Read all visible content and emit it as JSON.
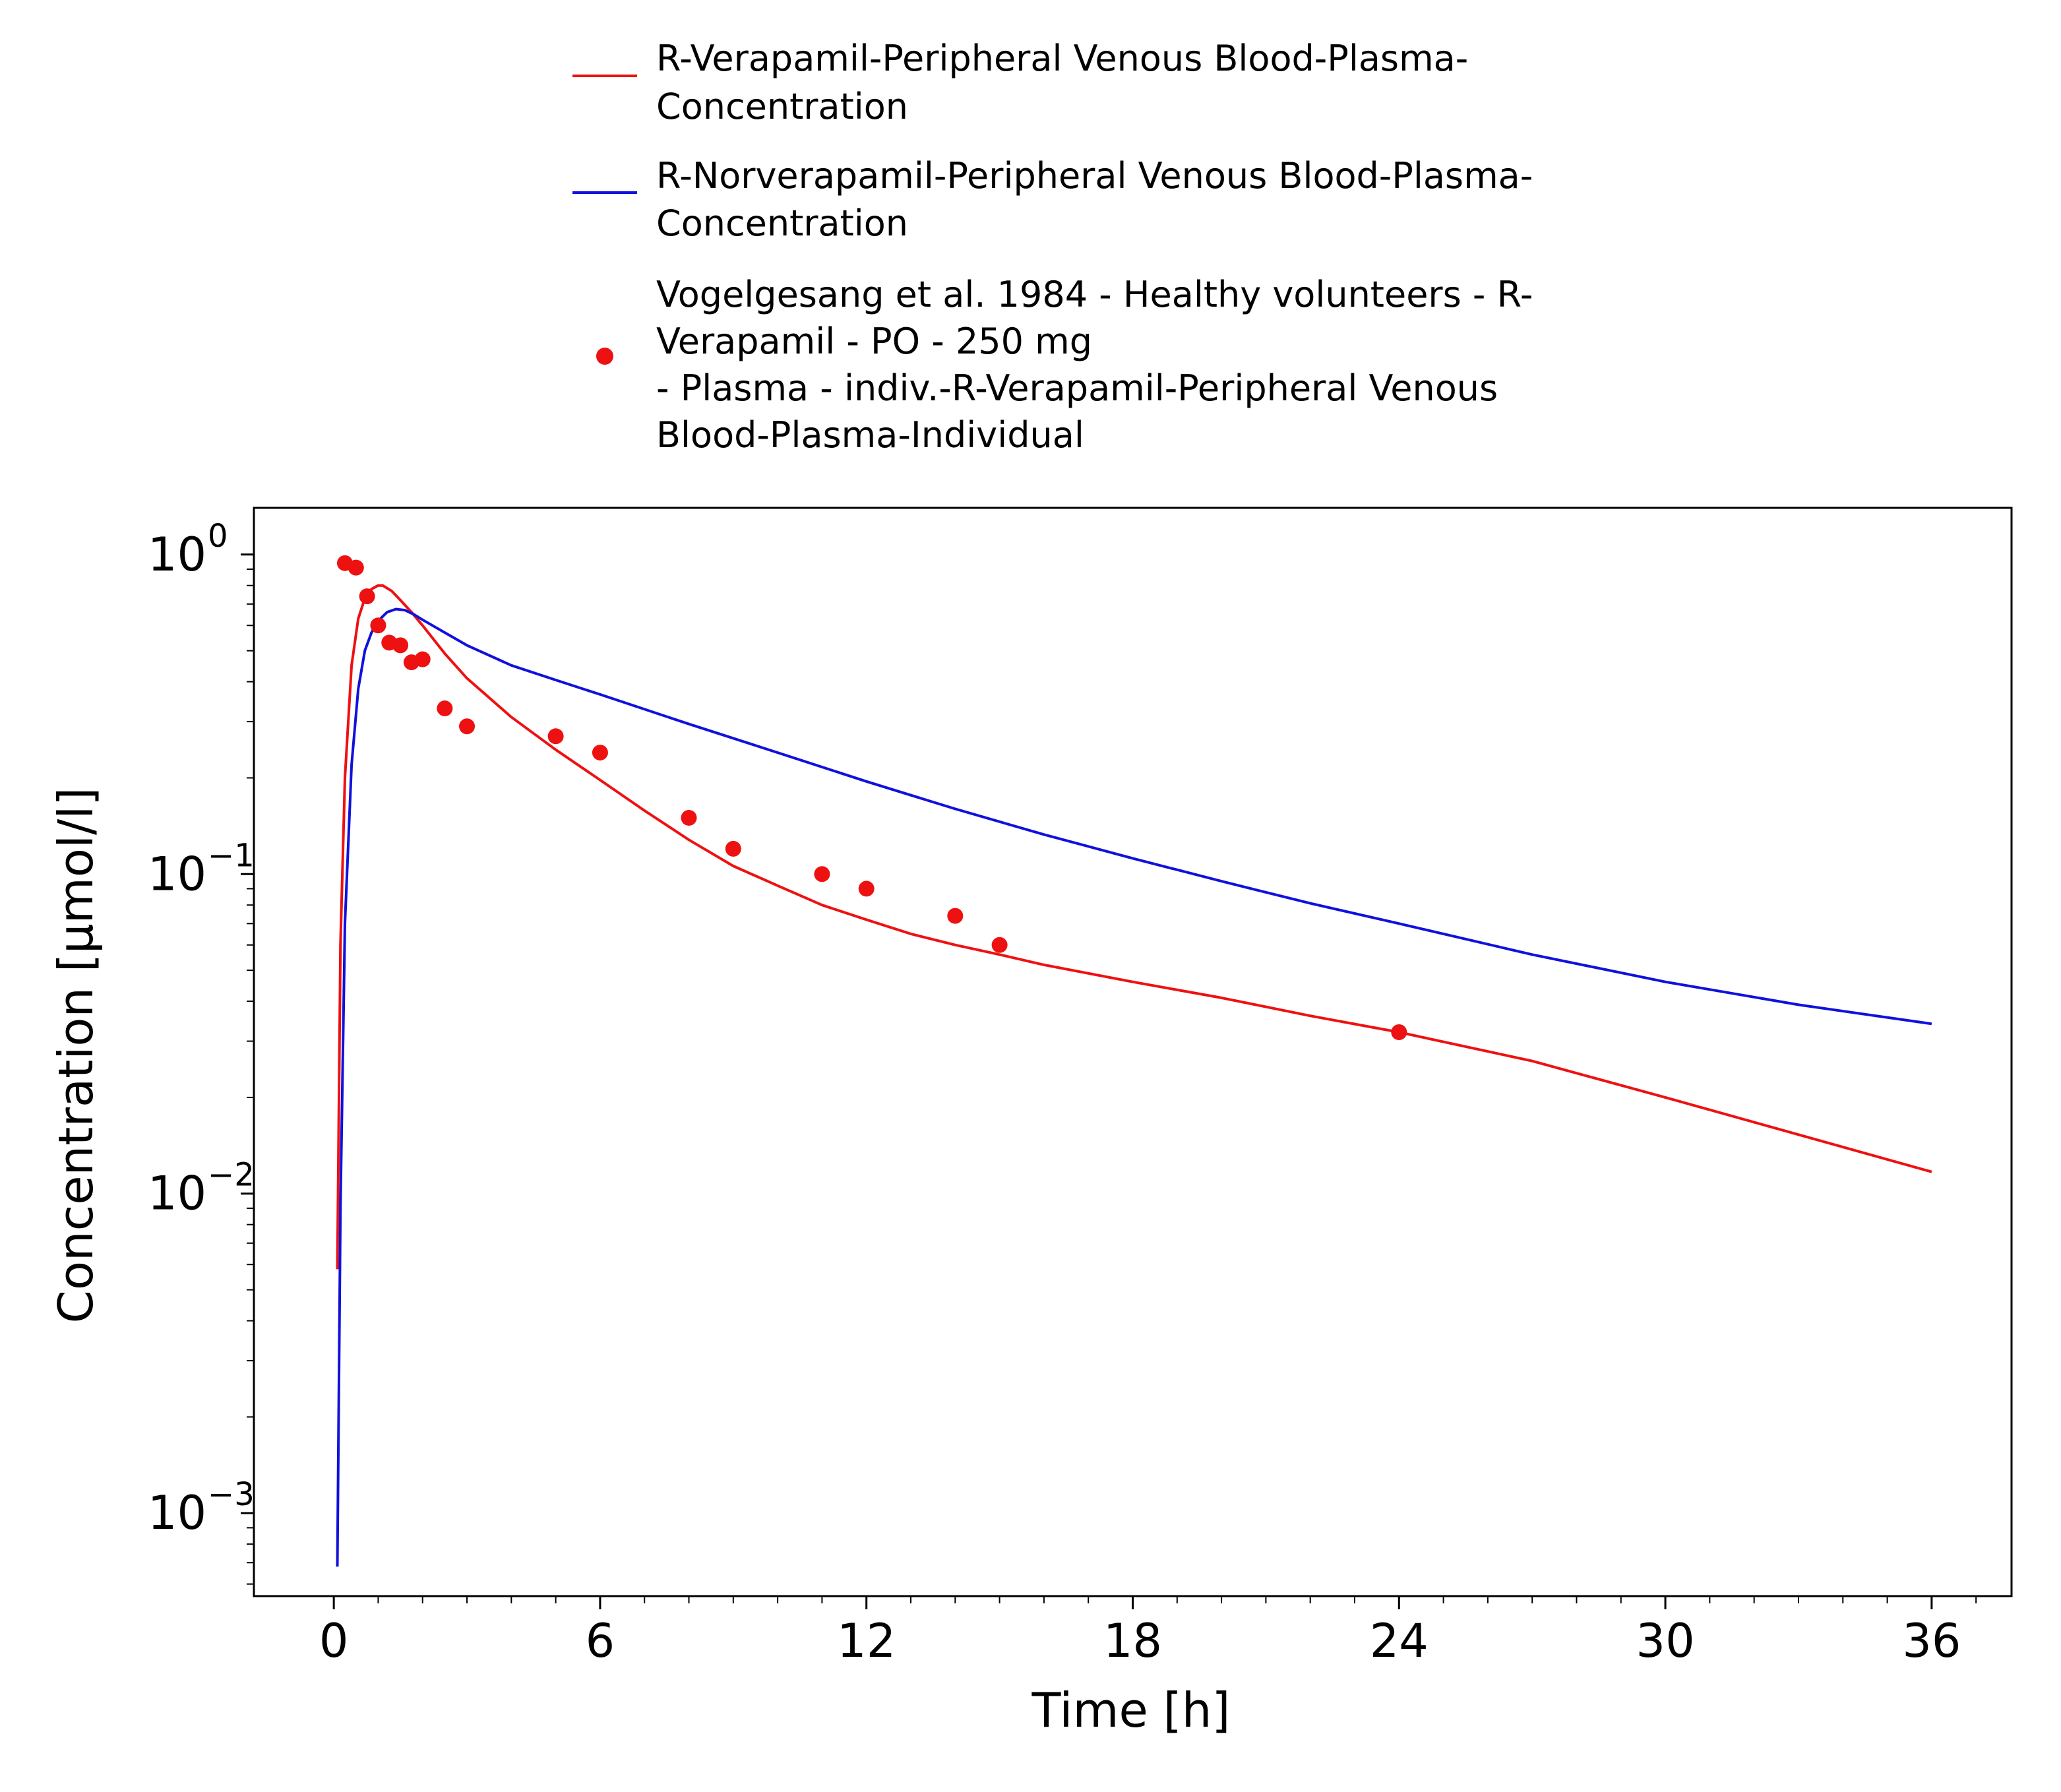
{
  "chart_data": {
    "type": "line",
    "xlabel": "Time [h]",
    "ylabel": "Concentration [µmol/l]",
    "xlim": [
      -1.8,
      37.8
    ],
    "ylim": [
      0.00055,
      1.4
    ],
    "yscale": "log",
    "grid": false,
    "legend_position": "top",
    "x_ticks": [
      {
        "value": 0,
        "label": "0"
      },
      {
        "value": 6,
        "label": "6"
      },
      {
        "value": 12,
        "label": "12"
      },
      {
        "value": 18,
        "label": "18"
      },
      {
        "value": 24,
        "label": "24"
      },
      {
        "value": 30,
        "label": "30"
      },
      {
        "value": 36,
        "label": "36"
      }
    ],
    "y_ticks": [
      {
        "value": 1,
        "base": "10",
        "exponent": "0"
      },
      {
        "value": 0.1,
        "base": "10",
        "exponent": "−1"
      },
      {
        "value": 0.01,
        "base": "10",
        "exponent": "−2"
      },
      {
        "value": 0.001,
        "base": "10",
        "exponent": "−3"
      }
    ],
    "series": [
      {
        "name": "R-Verapamil-Peripheral Venous Blood-Plasma-Concentration",
        "legend_lines": [
          "R-Verapamil-Peripheral Venous Blood-Plasma-",
          "Concentration"
        ],
        "kind": "line",
        "color": "#ee1111",
        "x": [
          0.08,
          0.15,
          0.25,
          0.4,
          0.55,
          0.7,
          0.85,
          1.0,
          1.1,
          1.3,
          1.5,
          1.75,
          2.0,
          2.5,
          3.0,
          4.0,
          5.0,
          6.0,
          7.0,
          8.0,
          9.0,
          10.0,
          11.0,
          12.0,
          13.0,
          14.0,
          15.0,
          16.0,
          18.0,
          20.0,
          22.0,
          24.0,
          27.0,
          30.0,
          33.0,
          36.0
        ],
        "y": [
          0.0058,
          0.06,
          0.2,
          0.45,
          0.63,
          0.73,
          0.78,
          0.8,
          0.8,
          0.77,
          0.72,
          0.66,
          0.6,
          0.49,
          0.41,
          0.31,
          0.245,
          0.197,
          0.158,
          0.128,
          0.106,
          0.092,
          0.08,
          0.072,
          0.065,
          0.06,
          0.056,
          0.052,
          0.046,
          0.041,
          0.036,
          0.032,
          0.026,
          0.02,
          0.0153,
          0.0117
        ]
      },
      {
        "name": "R-Norverapamil-Peripheral Venous Blood-Plasma-Concentration",
        "legend_lines": [
          "R-Norverapamil-Peripheral Venous Blood-Plasma-",
          "Concentration"
        ],
        "kind": "line",
        "color": "#1111dd",
        "x": [
          0.08,
          0.15,
          0.25,
          0.4,
          0.55,
          0.7,
          0.85,
          1.0,
          1.2,
          1.4,
          1.6,
          1.8,
          2.0,
          2.5,
          3.0,
          4.0,
          5.0,
          6.0,
          8.0,
          10.0,
          12.0,
          14.0,
          16.0,
          18.0,
          20.0,
          22.0,
          24.0,
          27.0,
          30.0,
          33.0,
          36.0
        ],
        "y": [
          0.00068,
          0.009,
          0.07,
          0.22,
          0.38,
          0.5,
          0.57,
          0.62,
          0.66,
          0.675,
          0.67,
          0.65,
          0.625,
          0.57,
          0.52,
          0.45,
          0.405,
          0.365,
          0.295,
          0.24,
          0.195,
          0.16,
          0.133,
          0.112,
          0.095,
          0.081,
          0.07,
          0.056,
          0.046,
          0.039,
          0.034
        ]
      },
      {
        "name": "Vogelgesang et al. 1984 - Healthy volunteers - R-Verapamil - PO - 250 mg - Plasma - indiv.-R-Verapamil-Peripheral Venous Blood-Plasma-Individual",
        "legend_lines": [
          "Vogelgesang et al. 1984 - Healthy volunteers - R-",
          "Verapamil - PO - 250 mg",
          "- Plasma - indiv.-R-Verapamil-Peripheral Venous",
          "Blood-Plasma-Individual"
        ],
        "kind": "scatter",
        "color": "#ee1111",
        "x": [
          0.25,
          0.5,
          0.75,
          1.0,
          1.25,
          1.5,
          1.75,
          2.0,
          2.5,
          3.0,
          5.0,
          6.0,
          8.0,
          9.0,
          11.0,
          12.0,
          14.0,
          15.0,
          24.0
        ],
        "y": [
          0.94,
          0.91,
          0.74,
          0.6,
          0.53,
          0.52,
          0.46,
          0.47,
          0.33,
          0.29,
          0.27,
          0.24,
          0.15,
          0.12,
          0.1,
          0.09,
          0.074,
          0.06,
          0.032
        ]
      }
    ]
  }
}
